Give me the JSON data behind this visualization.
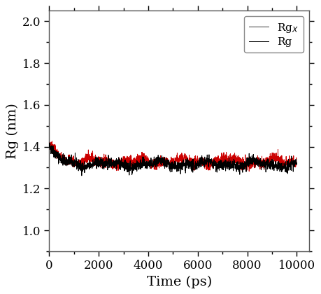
{
  "title": "",
  "xlabel": "Time (ps)",
  "ylabel": "Rg (nm)",
  "xlim": [
    0,
    10500
  ],
  "ylim": [
    0.9,
    2.05
  ],
  "yticks": [
    1.0,
    1.2,
    1.4,
    1.6,
    1.8,
    2.0
  ],
  "xticks": [
    0,
    2000,
    4000,
    6000,
    8000,
    10000
  ],
  "n_points": 2001,
  "rg_mean": 1.315,
  "rg_std": 0.013,
  "rgx_mean": 1.33,
  "rgx_std": 0.013,
  "rg_color": "#000000",
  "rgx_color": "#cc0000",
  "legend_labels": [
    "Rg",
    "Rg$_X$"
  ],
  "linewidth": 0.7,
  "background_color": "#ffffff",
  "tick_direction": "out",
  "seed_rg": 42,
  "seed_rgx": 7
}
